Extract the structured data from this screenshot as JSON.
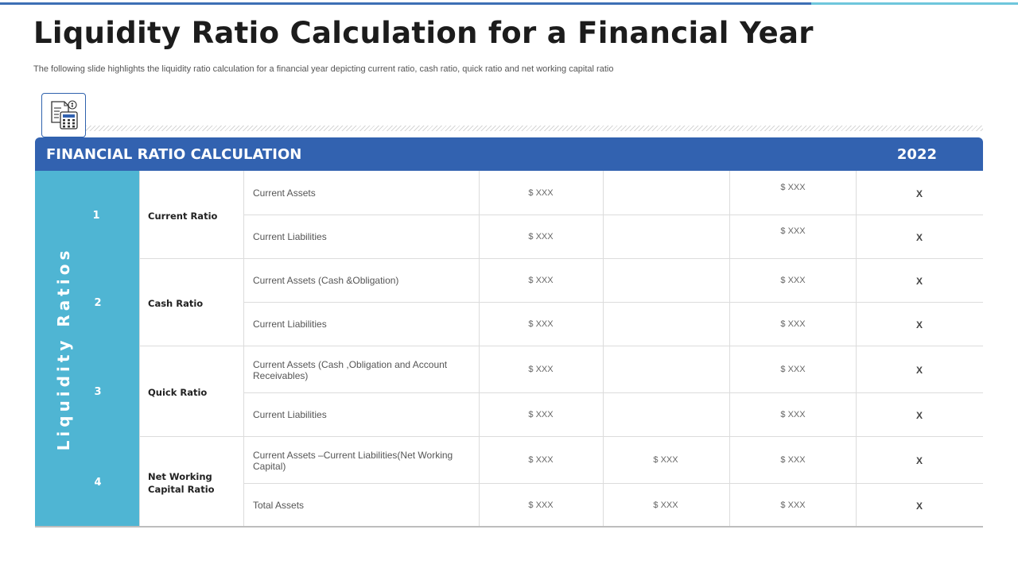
{
  "title": "Liquidity Ratio Calculation for a Financial Year",
  "subtitle": "The following slide highlights the liquidity ratio calculation for a financial year depicting current ratio, cash ratio, quick ratio and net working capital ratio",
  "icon": "calculator-document-icon",
  "table": {
    "header_title": "FINANCIAL RATIO CALCULATION",
    "year": "2022",
    "side_label": "Liquidity Ratios",
    "ratios": [
      {
        "num": "1",
        "name": "Current Ratio",
        "rows": [
          {
            "item": "Current Assets",
            "col1": "$ XXX",
            "col2": "",
            "col3": "$ XXX",
            "result": "X"
          },
          {
            "item": "Current Liabilities",
            "col1": "$ XXX",
            "col2": "",
            "col3": "$ XXX",
            "result": "X"
          }
        ]
      },
      {
        "num": "2",
        "name": "Cash Ratio",
        "rows": [
          {
            "item": "Current Assets (Cash &Obligation)",
            "col1": "$ XXX",
            "col2": "",
            "col3": "$ XXX",
            "result": "X"
          },
          {
            "item": "Current Liabilities",
            "col1": "$ XXX",
            "col2": "",
            "col3": "$ XXX",
            "result": "X"
          }
        ]
      },
      {
        "num": "3",
        "name": "Quick Ratio",
        "rows": [
          {
            "item": "Current Assets (Cash ,Obligation and Account Receivables)",
            "col1": "$ XXX",
            "col2": "",
            "col3": "$ XXX",
            "result": "X"
          },
          {
            "item": "Current Liabilities",
            "col1": "$ XXX",
            "col2": "",
            "col3": "$ XXX",
            "result": "X"
          }
        ]
      },
      {
        "num": "4",
        "name": "Net Working Capital Ratio",
        "rows": [
          {
            "item": "Current Assets –Current Liabilities(Net Working Capital)",
            "col1": "$ XXX",
            "col2": "$ XXX",
            "col3": "$ XXX",
            "result": "X"
          },
          {
            "item": "Total Assets",
            "col1": "$ XXX",
            "col2": "$ XXX",
            "col3": "$ XXX",
            "result": "X"
          }
        ]
      }
    ]
  },
  "colors": {
    "header": "#3262b0",
    "side_panel": "#4fb5d3",
    "top_bar_dark": "#3d6fb5",
    "top_bar_light": "#6ec6dc"
  }
}
